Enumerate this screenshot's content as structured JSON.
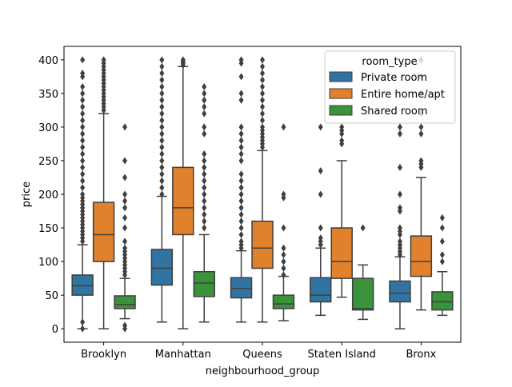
{
  "chart_data": {
    "type": "boxplot",
    "xlabel": "neighbourhood_group",
    "ylabel": "price",
    "categories": [
      "Brooklyn",
      "Manhattan",
      "Queens",
      "Staten Island",
      "Bronx"
    ],
    "ylim": [
      -20,
      420
    ],
    "yticks": [
      0,
      50,
      100,
      150,
      200,
      250,
      300,
      350,
      400
    ],
    "grid": false,
    "legend": {
      "title": "room_type",
      "placement": "top-right",
      "entries": [
        "Private room",
        "Entire home/apt",
        "Shared room"
      ]
    },
    "series": [
      {
        "name": "Private room",
        "color": "#3274a1",
        "boxes": [
          {
            "whislo": 0,
            "q1": 50,
            "med": 64,
            "q3": 80,
            "whishi": 125,
            "fliers": [
              0,
              10,
              130,
              135,
              140,
              145,
              150,
              155,
              160,
              165,
              170,
              175,
              180,
              185,
              190,
              195,
              200,
              210,
              220,
              230,
              240,
              250,
              260,
              270,
              280,
              290,
              300,
              310,
              320,
              330,
              340,
              350,
              360,
              375,
              380,
              400
            ]
          },
          {
            "whislo": 10,
            "q1": 65,
            "med": 90,
            "q3": 118,
            "whishi": 197,
            "fliers": [
              200,
              210,
              220,
              230,
              240,
              250,
              260,
              270,
              280,
              290,
              300,
              310,
              320,
              330,
              340,
              350,
              360,
              370,
              380,
              390,
              400
            ]
          },
          {
            "whislo": 10,
            "q1": 46,
            "med": 60,
            "q3": 76,
            "whishi": 116,
            "fliers": [
              120,
              125,
              130,
              140,
              150,
              160,
              170,
              180,
              190,
              200,
              210,
              220,
              230,
              250,
              260,
              270,
              280,
              290,
              300,
              340,
              350,
              375,
              395,
              400
            ]
          },
          {
            "whislo": 20,
            "q1": 40,
            "med": 50,
            "q3": 76,
            "whishi": 120,
            "fliers": [
              125,
              130,
              135,
              150,
              200,
              235,
              300
            ]
          },
          {
            "whislo": 0,
            "q1": 40,
            "med": 53,
            "q3": 71,
            "whishi": 107,
            "fliers": [
              110,
              115,
              120,
              125,
              130,
              140,
              145,
              150,
              175,
              180,
              200,
              240,
              290,
              300
            ]
          }
        ]
      },
      {
        "name": "Entire home/apt",
        "color": "#e1812c",
        "boxes": [
          {
            "whislo": 0,
            "q1": 100,
            "med": 140,
            "q3": 188,
            "whishi": 320,
            "fliers": [
              325,
              330,
              335,
              340,
              345,
              350,
              355,
              360,
              365,
              370,
              375,
              380,
              385,
              390,
              395,
              400
            ]
          },
          {
            "whislo": 0,
            "q1": 140,
            "med": 180,
            "q3": 240,
            "whishi": 390,
            "fliers": [
              392,
              395,
              397,
              400
            ]
          },
          {
            "whislo": 10,
            "q1": 90,
            "med": 120,
            "q3": 160,
            "whishi": 265,
            "fliers": [
              270,
              275,
              280,
              285,
              290,
              295,
              300,
              310,
              320,
              330,
              340,
              350,
              360,
              370,
              380,
              390,
              400
            ]
          },
          {
            "whislo": 47,
            "q1": 75,
            "med": 100,
            "q3": 150,
            "whishi": 250,
            "fliers": [
              275,
              280,
              290,
              295,
              300
            ]
          },
          {
            "whislo": 28,
            "q1": 78,
            "med": 100,
            "q3": 138,
            "whishi": 225,
            "fliers": [
              240,
              245,
              250,
              290,
              300,
              320,
              350,
              375,
              400
            ]
          }
        ]
      },
      {
        "name": "Shared room",
        "color": "#3a923a",
        "boxes": [
          {
            "whislo": 15,
            "q1": 30,
            "med": 36,
            "q3": 49,
            "whishi": 75,
            "fliers": [
              0,
              5,
              80,
              85,
              90,
              95,
              100,
              105,
              110,
              115,
              120,
              130,
              150,
              165,
              180,
              190,
              200,
              225,
              250,
              300
            ]
          },
          {
            "whislo": 10,
            "q1": 48,
            "med": 68,
            "q3": 85,
            "whishi": 140,
            "fliers": [
              150,
              160,
              170,
              180,
              190,
              200,
              210,
              220,
              230,
              240,
              250,
              260,
              290,
              300,
              320,
              330,
              340,
              350,
              360
            ]
          },
          {
            "whislo": 12,
            "q1": 30,
            "med": 37,
            "q3": 50,
            "whishi": 78,
            "fliers": [
              80,
              90,
              100,
              110,
              120,
              150,
              195,
              200,
              300
            ]
          },
          {
            "whislo": 14,
            "q1": 28,
            "med": 30,
            "q3": 75,
            "whishi": 95,
            "fliers": [
              150
            ]
          },
          {
            "whislo": 20,
            "q1": 28,
            "med": 40,
            "q3": 55,
            "whishi": 85,
            "fliers": [
              100,
              110,
              130,
              150,
              165
            ]
          }
        ]
      }
    ]
  }
}
